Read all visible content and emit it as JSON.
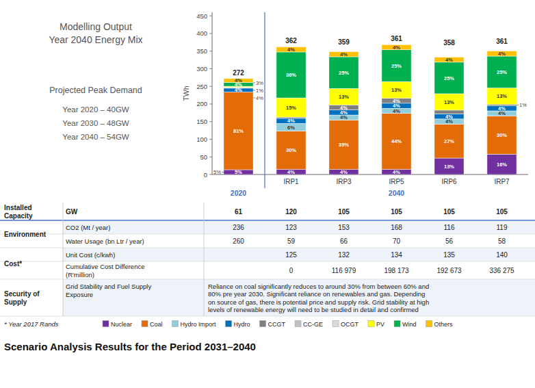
{
  "chart_data": {
    "type": "bar",
    "stacked": true,
    "title": "Scenario Analysis Results for the Period 2031–2040",
    "ylabel": "TWh",
    "ylim": [
      0,
      460
    ],
    "yticks": [
      0,
      50,
      100,
      150,
      200,
      250,
      300,
      350,
      400,
      450
    ],
    "grid": false,
    "legend": "bottom",
    "categories": [
      null,
      "IRP1",
      "IRP3",
      "IRP5",
      "IRP6",
      "IRP7"
    ],
    "category_groups": [
      {
        "label": "2020",
        "size": 1
      },
      {
        "label": "2040",
        "size": 5
      }
    ],
    "series": [
      {
        "name": "Nuclear",
        "color": "#7030A0",
        "values": [
          13.6,
          14.48,
          14.36,
          14.44,
          46.54,
          57.76
        ],
        "share_labels": [
          "5%",
          "4%",
          "4%",
          "4%",
          "13%",
          "16%"
        ]
      },
      {
        "name": "Coal",
        "color": "#E36C09",
        "values": [
          220.32,
          108.6,
          140.01,
          158.84,
          96.66,
          108.3
        ],
        "share_labels": [
          "81%",
          "30%",
          "39%",
          "44%",
          "27%",
          "30%"
        ]
      },
      {
        "name": "Hydro Import",
        "color": "#92CDDC",
        "values": [
          0,
          21.72,
          14.36,
          14.44,
          14.32,
          14.44
        ],
        "share_labels": [
          null,
          "6%",
          "4%",
          "4%",
          "4%",
          "4%"
        ]
      },
      {
        "name": "Hydro",
        "color": "#0070C0",
        "values": [
          10.88,
          14.48,
          14.36,
          14.44,
          14.32,
          14.44
        ],
        "share_labels": [
          "4%",
          "4%",
          "4%",
          "4%",
          "4%",
          "4%"
        ]
      },
      {
        "name": "CCGT",
        "color": "#808080",
        "values": [
          0,
          3.62,
          14.36,
          14.44,
          10.74,
          3.61
        ],
        "share_labels": [
          null,
          null,
          "4%",
          "4%",
          null,
          null
        ]
      },
      {
        "name": "CC-GE",
        "color": "#C0C0C0",
        "values": [
          0,
          0,
          0,
          0,
          0,
          0
        ]
      },
      {
        "name": "OCGT",
        "color": "#D9D9D9",
        "values": [
          2.72,
          0,
          0,
          0,
          0,
          0
        ]
      },
      {
        "name": "PV",
        "color": "#FFFF00",
        "values": [
          2.72,
          54.3,
          46.67,
          46.93,
          46.54,
          46.93
        ],
        "share_labels": [
          null,
          "15%",
          "13%",
          "13%",
          "13%",
          "13%"
        ]
      },
      {
        "name": "Wind",
        "color": "#00B050",
        "values": [
          10.88,
          130.32,
          89.75,
          90.25,
          89.5,
          90.25
        ],
        "share_labels": [
          "4%",
          "36%",
          "25%",
          "25%",
          "25%",
          "25%"
        ]
      },
      {
        "name": "Others",
        "color": "#FFC000",
        "values": [
          10.88,
          14.48,
          14.36,
          14.44,
          14.32,
          14.44
        ],
        "share_labels": [
          "4%",
          "4%",
          "4%",
          "4%",
          "4%",
          "4%"
        ]
      }
    ],
    "totals": [
      272,
      362,
      359,
      361,
      358,
      361
    ],
    "annotations": [
      {
        "text": "3%",
        "category_index": 0,
        "side": "right"
      },
      {
        "text": "1%",
        "category_index": 0,
        "side": "right"
      },
      {
        "text": "4%",
        "category_index": 0,
        "side": "right"
      },
      {
        "text": "1%",
        "category_index": 5,
        "side": "right",
        "series": "CCGT"
      },
      {
        "text": "5%",
        "category_index": 0,
        "side": "left",
        "series": "Nuclear"
      }
    ]
  },
  "side_panel": {
    "heading": [
      "Modelling Output",
      "Year 2040 Energy Mix"
    ],
    "subheading": "Projected Peak Demand",
    "lines": [
      "Year 2020 – 40GW",
      "Year 2030 – 48GW",
      "Year 2040 – 54GW"
    ]
  },
  "table": {
    "rows": [
      {
        "category": [
          "Installed",
          "Capacity"
        ],
        "subcategory": [
          "GW"
        ],
        "values": [
          "61",
          "120",
          "105",
          "105",
          "105",
          "105"
        ]
      },
      {
        "category": [
          "Environment"
        ],
        "subcategory": [
          "CO2 (Mt / year)"
        ],
        "values": [
          "236",
          "123",
          "153",
          "168",
          "116",
          "119"
        ]
      },
      {
        "category": null,
        "subcategory": [
          "Water Usage (bn Ltr / year)"
        ],
        "values": [
          "260",
          "59",
          "66",
          "70",
          "56",
          "58"
        ]
      },
      {
        "category": [
          "Cost*"
        ],
        "subcategory": [
          "Unit Cost (c/kwh)"
        ],
        "values": [
          null,
          "125",
          "132",
          "134",
          "135",
          "140"
        ]
      },
      {
        "category": null,
        "subcategory": [
          "Cumulative Cost Difference",
          "(R'million)"
        ],
        "values": [
          null,
          "0",
          "116 979",
          "198 173",
          "192 673",
          "336 275"
        ]
      },
      {
        "category": [
          "Security of",
          "Supply"
        ],
        "subcategory": [
          "Grid Stability and Fuel Supply",
          "Exposure"
        ],
        "text": [
          "Reliance on coal significantly reduces to around 30% from between 60% and",
          "80% pre year 2030. Significant reliance on renewables and gas. Depending",
          "on source of gas, there is potential price and supply risk. Grid stability at high",
          "levels of renewable energy will need to be studied in detail and confirmed"
        ]
      }
    ],
    "footnote": "* Year 2017 Rands"
  }
}
